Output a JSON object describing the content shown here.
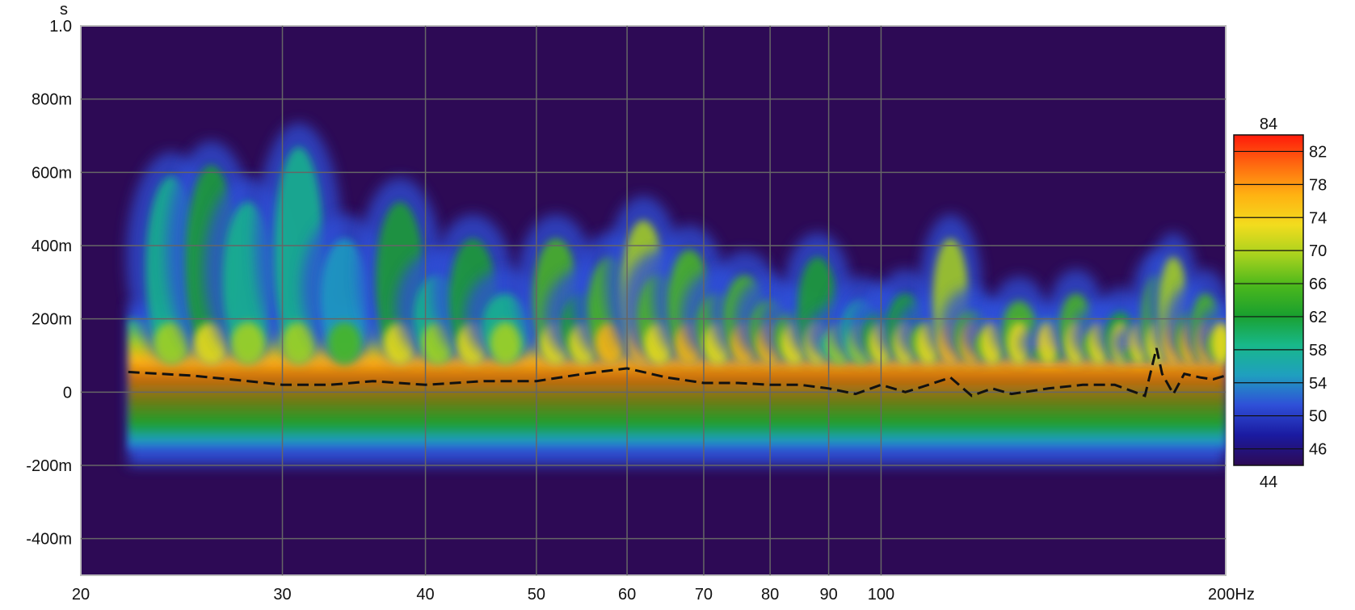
{
  "chart_data": {
    "type": "heatmap",
    "subtype": "spectrogram",
    "title": "",
    "xlabel": "",
    "ylabel": "",
    "x_scale": "log",
    "xlim": [
      20,
      200
    ],
    "ylim": [
      -0.5,
      1.0
    ],
    "x_unit": "Hz",
    "y_unit": "s",
    "x_ticks": [
      {
        "value": 20,
        "label": "20"
      },
      {
        "value": 30,
        "label": "30"
      },
      {
        "value": 40,
        "label": "40"
      },
      {
        "value": 50,
        "label": "50"
      },
      {
        "value": 60,
        "label": "60"
      },
      {
        "value": 70,
        "label": "70"
      },
      {
        "value": 80,
        "label": "80"
      },
      {
        "value": 90,
        "label": "90"
      },
      {
        "value": 100,
        "label": "100"
      },
      {
        "value": 200,
        "label": "200Hz"
      }
    ],
    "y_ticks": [
      {
        "value": 1.0,
        "label": "1.0"
      },
      {
        "value": 0.8,
        "label": "800m"
      },
      {
        "value": 0.6,
        "label": "600m"
      },
      {
        "value": 0.4,
        "label": "400m"
      },
      {
        "value": 0.2,
        "label": "200m"
      },
      {
        "value": 0.0,
        "label": "0"
      },
      {
        "value": -0.2,
        "label": "-200m"
      },
      {
        "value": -0.4,
        "label": "-400m"
      }
    ],
    "y_axis_unit_label": "s",
    "grid": true,
    "background_color": "#2d0a55",
    "color_scale": {
      "min": 44,
      "max": 84,
      "min_label": "44",
      "max_label": "84",
      "ticks": [
        "82",
        "78",
        "74",
        "70",
        "66",
        "62",
        "58",
        "54",
        "50",
        "46"
      ],
      "tick_values": [
        82,
        78,
        74,
        70,
        66,
        62,
        58,
        54,
        50,
        46
      ],
      "colors": [
        "#2d0a55",
        "#1a1aa0",
        "#2f4fd8",
        "#1f9fbf",
        "#18b88a",
        "#1aa02e",
        "#4cb81c",
        "#a8d21e",
        "#f2dc1e",
        "#ffb212",
        "#ff6a10",
        "#ff1a0a"
      ]
    },
    "peak_energy_curve": {
      "style": "dashed",
      "color": "#111111",
      "x": [
        22,
        25,
        28,
        30,
        33,
        36,
        40,
        45,
        50,
        55,
        60,
        65,
        70,
        75,
        80,
        85,
        90,
        95,
        100,
        105,
        110,
        115,
        120,
        125,
        130,
        140,
        150,
        160,
        170,
        174,
        176,
        180,
        184,
        190,
        195,
        200
      ],
      "y": [
        0.055,
        0.045,
        0.03,
        0.02,
        0.02,
        0.03,
        0.02,
        0.03,
        0.03,
        0.05,
        0.065,
        0.04,
        0.025,
        0.025,
        0.02,
        0.02,
        0.01,
        -0.005,
        0.02,
        0.0,
        0.02,
        0.04,
        -0.01,
        0.01,
        -0.005,
        0.01,
        0.02,
        0.02,
        -0.01,
        0.12,
        0.05,
        -0.005,
        0.05,
        0.04,
        0.035,
        0.045
      ]
    },
    "decay_ridges": {
      "description_values": "frequency (Hz) and decay extent (s) of visible resonance tails",
      "x": [
        24,
        26,
        28,
        31,
        34,
        38,
        41,
        44,
        47,
        52,
        55,
        58,
        62,
        64,
        68,
        72,
        76,
        80,
        84,
        88,
        92,
        96,
        100,
        105,
        110,
        115,
        120,
        125,
        132,
        140,
        148,
        155,
        162,
        168,
        174,
        180,
        186,
        192,
        198
      ],
      "top": [
        0.62,
        0.65,
        0.55,
        0.7,
        0.45,
        0.55,
        0.35,
        0.45,
        0.3,
        0.45,
        0.3,
        0.4,
        0.5,
        0.35,
        0.42,
        0.3,
        0.35,
        0.28,
        0.25,
        0.4,
        0.2,
        0.28,
        0.25,
        0.3,
        0.22,
        0.45,
        0.25,
        0.2,
        0.28,
        0.15,
        0.3,
        0.2,
        0.25,
        0.15,
        0.35,
        0.4,
        0.25,
        0.3,
        0.2
      ],
      "level": [
        70,
        72,
        68,
        70,
        66,
        72,
        68,
        72,
        70,
        74,
        72,
        76,
        78,
        74,
        76,
        74,
        76,
        76,
        74,
        72,
        70,
        70,
        72,
        72,
        74,
        78,
        76,
        74,
        74,
        72,
        74,
        74,
        72,
        72,
        74,
        78,
        76,
        76,
        74
      ]
    }
  }
}
